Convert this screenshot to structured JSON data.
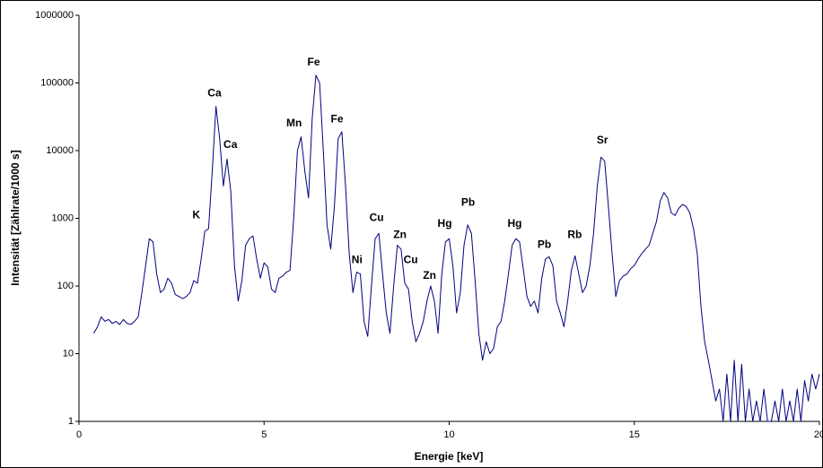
{
  "chart_data": {
    "type": "line",
    "xlabel": "Energie [keV]",
    "ylabel": "Intensität [Zählrate/1000 s]",
    "yscale": "log",
    "grid": false,
    "xlim": [
      0,
      20
    ],
    "xticks": [
      0,
      5,
      10,
      15,
      20
    ],
    "ylim": [
      1,
      1000000
    ],
    "yticks": [
      1,
      10,
      100,
      1000,
      10000,
      100000,
      1000000
    ],
    "series": [
      {
        "color": "#000080",
        "x": [
          0.4,
          0.5,
          0.6,
          0.7,
          0.8,
          0.9,
          1.0,
          1.1,
          1.2,
          1.3,
          1.4,
          1.5,
          1.6,
          1.7,
          1.8,
          1.9,
          2.0,
          2.1,
          2.2,
          2.3,
          2.4,
          2.5,
          2.6,
          2.7,
          2.8,
          2.9,
          3.0,
          3.1,
          3.2,
          3.3,
          3.4,
          3.5,
          3.6,
          3.7,
          3.8,
          3.9,
          4.0,
          4.1,
          4.2,
          4.3,
          4.4,
          4.5,
          4.6,
          4.7,
          4.8,
          4.9,
          5.0,
          5.1,
          5.2,
          5.3,
          5.4,
          5.5,
          5.6,
          5.7,
          5.8,
          5.9,
          6.0,
          6.1,
          6.2,
          6.3,
          6.4,
          6.5,
          6.6,
          6.7,
          6.8,
          6.9,
          7.0,
          7.1,
          7.2,
          7.3,
          7.4,
          7.5,
          7.6,
          7.7,
          7.8,
          7.9,
          8.0,
          8.1,
          8.2,
          8.3,
          8.4,
          8.5,
          8.6,
          8.7,
          8.8,
          8.9,
          9.0,
          9.1,
          9.2,
          9.3,
          9.4,
          9.5,
          9.6,
          9.7,
          9.8,
          9.9,
          10.0,
          10.1,
          10.2,
          10.3,
          10.4,
          10.5,
          10.6,
          10.7,
          10.8,
          10.9,
          11.0,
          11.1,
          11.2,
          11.3,
          11.4,
          11.5,
          11.6,
          11.7,
          11.8,
          11.9,
          12.0,
          12.1,
          12.2,
          12.3,
          12.4,
          12.5,
          12.6,
          12.7,
          12.8,
          12.9,
          13.0,
          13.1,
          13.2,
          13.3,
          13.4,
          13.5,
          13.6,
          13.7,
          13.8,
          13.9,
          14.0,
          14.1,
          14.2,
          14.3,
          14.4,
          14.5,
          14.6,
          14.7,
          14.8,
          14.9,
          15.0,
          15.1,
          15.2,
          15.3,
          15.4,
          15.5,
          15.6,
          15.7,
          15.8,
          15.9,
          16.0,
          16.1,
          16.2,
          16.3,
          16.4,
          16.5,
          16.6,
          16.7,
          16.8,
          16.9,
          17.0,
          17.1,
          17.2,
          17.3,
          17.4,
          17.5,
          17.6,
          17.7,
          17.8,
          17.9,
          18.0,
          18.1,
          18.2,
          18.3,
          18.4,
          18.5,
          18.6,
          18.7,
          18.8,
          18.9,
          19.0,
          19.1,
          19.2,
          19.3,
          19.4,
          19.5,
          19.6,
          19.7,
          19.8,
          19.9,
          20.0
        ],
        "values": [
          20,
          25,
          35,
          30,
          32,
          28,
          30,
          27,
          32,
          28,
          27,
          30,
          35,
          80,
          200,
          500,
          450,
          150,
          80,
          90,
          130,
          110,
          75,
          70,
          65,
          70,
          80,
          120,
          110,
          250,
          650,
          700,
          5000,
          45000,
          15000,
          3000,
          7500,
          2500,
          200,
          60,
          120,
          400,
          500,
          550,
          250,
          130,
          220,
          190,
          90,
          80,
          130,
          140,
          160,
          170,
          1000,
          10000,
          16000,
          5000,
          2000,
          30000,
          130000,
          100000,
          10000,
          800,
          350,
          1500,
          15000,
          19000,
          3000,
          300,
          80,
          160,
          150,
          30,
          18,
          100,
          500,
          600,
          150,
          40,
          20,
          100,
          400,
          350,
          110,
          90,
          30,
          15,
          20,
          30,
          60,
          100,
          60,
          20,
          150,
          450,
          500,
          200,
          40,
          80,
          400,
          800,
          600,
          120,
          20,
          8,
          15,
          10,
          12,
          25,
          30,
          60,
          150,
          400,
          500,
          450,
          180,
          70,
          50,
          60,
          40,
          130,
          250,
          270,
          200,
          60,
          40,
          25,
          60,
          170,
          280,
          150,
          80,
          100,
          200,
          600,
          3000,
          8000,
          7000,
          1500,
          300,
          70,
          120,
          140,
          150,
          180,
          200,
          250,
          300,
          350,
          400,
          600,
          900,
          1800,
          2400,
          2000,
          1200,
          1100,
          1400,
          1600,
          1500,
          1200,
          700,
          300,
          50,
          15,
          8,
          4,
          2,
          3,
          1,
          5,
          1,
          8,
          1,
          7,
          1,
          3,
          1,
          2,
          1,
          3,
          1,
          1,
          2,
          1,
          3,
          1,
          2,
          1,
          3,
          1,
          4,
          2,
          5,
          3,
          5
        ]
      }
    ],
    "annotations": [
      {
        "text": "Ca",
        "x": 3.66,
        "y": 70000
      },
      {
        "text": "Ca",
        "x": 4.09,
        "y": 12000
      },
      {
        "text": "K",
        "x": 3.17,
        "y": 1100
      },
      {
        "text": "Mn",
        "x": 5.81,
        "y": 25000
      },
      {
        "text": "Fe",
        "x": 6.34,
        "y": 200000
      },
      {
        "text": "Fe",
        "x": 6.97,
        "y": 29000
      },
      {
        "text": "Ni",
        "x": 7.51,
        "y": 240
      },
      {
        "text": "Cu",
        "x": 8.04,
        "y": 1000
      },
      {
        "text": "Zn",
        "x": 8.67,
        "y": 560
      },
      {
        "text": "Cu",
        "x": 8.96,
        "y": 240
      },
      {
        "text": "Zn",
        "x": 9.47,
        "y": 140
      },
      {
        "text": "Hg",
        "x": 9.88,
        "y": 820
      },
      {
        "text": "Pb",
        "x": 10.51,
        "y": 1700
      },
      {
        "text": "Hg",
        "x": 11.77,
        "y": 820
      },
      {
        "text": "Pb",
        "x": 12.57,
        "y": 400
      },
      {
        "text": "Rb",
        "x": 13.39,
        "y": 560
      },
      {
        "text": "Sr",
        "x": 14.14,
        "y": 14000
      }
    ]
  }
}
